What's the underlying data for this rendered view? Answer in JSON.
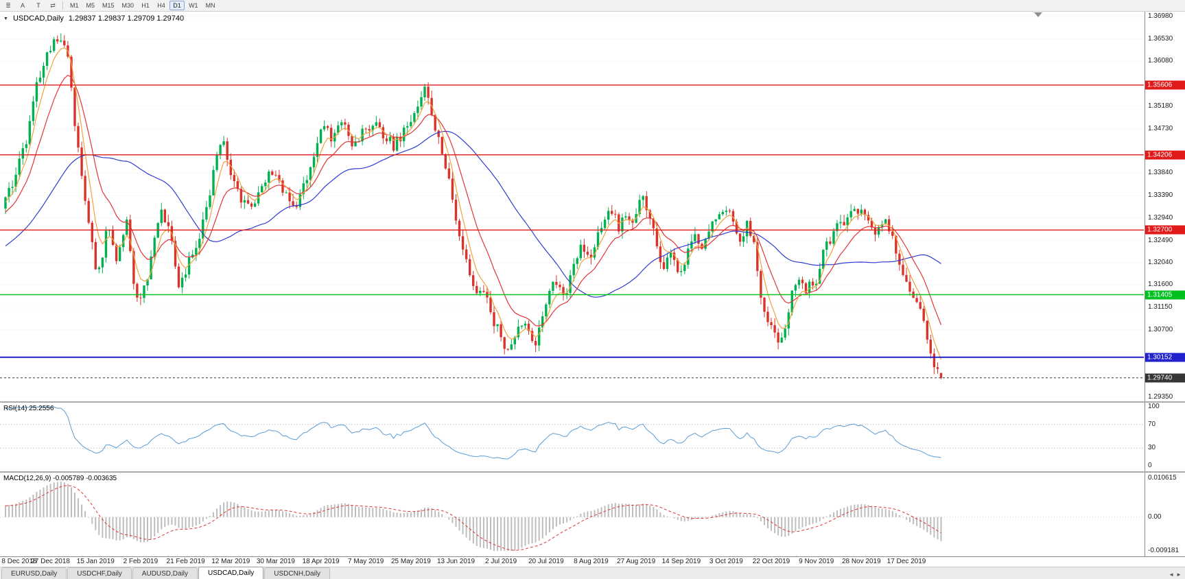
{
  "toolbar": {
    "menu_icon": "≣",
    "a_label": "A",
    "t_label": "T",
    "arrows_icon": "⇄",
    "timeframes": [
      "M1",
      "M5",
      "M15",
      "M30",
      "H1",
      "H4",
      "D1",
      "W1",
      "MN"
    ],
    "active_timeframe": "D1"
  },
  "icons": {
    "caret_down": "▼",
    "tab_scroll_left": "◄",
    "tab_scroll_right": "►"
  },
  "chart": {
    "symbol_period": "USDCAD,Daily",
    "ohlc_text": "1.29837 1.29837 1.29709 1.29740"
  },
  "chart_data": {
    "type": "candlestick",
    "symbol": "USDCAD",
    "timeframe": "Daily",
    "bar_count": 271,
    "last_bar": {
      "open": 1.29837,
      "high": 1.29837,
      "low": 1.29709,
      "close": 1.2974
    },
    "price_range": {
      "max": 1.37075,
      "min": 1.29268
    },
    "price_axis_ticks": [
      "1.36980",
      "1.36530",
      "1.36080",
      "1.35180",
      "1.34730",
      "1.33840",
      "1.33390",
      "1.32940",
      "1.32490",
      "1.32040",
      "1.31600",
      "1.31150",
      "1.30700",
      "1.29350"
    ],
    "levels": [
      {
        "price": 1.35606,
        "label": "1.35606",
        "color": "#e11a1a",
        "width": 1.4,
        "role": "resistance"
      },
      {
        "price": 1.34206,
        "label": "1.34206",
        "color": "#e11a1a",
        "width": 1.4,
        "role": "resistance"
      },
      {
        "price": 1.327,
        "label": "1.32700",
        "color": "#e11a1a",
        "width": 1.4,
        "role": "resistance"
      },
      {
        "price": 1.31405,
        "label": "1.31405",
        "color": "#00c11f",
        "width": 1.6,
        "role": "support"
      },
      {
        "price": 1.30152,
        "label": "1.30152",
        "color": "#2222cc",
        "width": 2,
        "role": "support"
      },
      {
        "price": 1.2974,
        "label": "1.29740",
        "color": "#363636",
        "width": 1,
        "style": "dashed",
        "role": "bid"
      }
    ],
    "colors": {
      "bull": "#00b14f",
      "bear": "#d9342b",
      "grid": "#e3e3ec"
    },
    "moving_averages": [
      {
        "name": "fast",
        "period": 5,
        "color": "#eda33c"
      },
      {
        "name": "medium",
        "period": 13,
        "color": "#e23434"
      },
      {
        "name": "slow",
        "period": 40,
        "color": "#2e3bd2"
      }
    ],
    "date_ticks": [
      {
        "index": 0,
        "label": "8 Dec 2018"
      },
      {
        "index": 13,
        "label": "27 Dec 2018"
      },
      {
        "index": 26,
        "label": "15 Jan 2019"
      },
      {
        "index": 39,
        "label": "2 Feb 2019"
      },
      {
        "index": 52,
        "label": "21 Feb 2019"
      },
      {
        "index": 65,
        "label": "12 Mar 2019"
      },
      {
        "index": 78,
        "label": "30 Mar 2019"
      },
      {
        "index": 91,
        "label": "18 Apr 2019"
      },
      {
        "index": 104,
        "label": "7 May 2019"
      },
      {
        "index": 117,
        "label": "25 May 2019"
      },
      {
        "index": 130,
        "label": "13 Jun 2019"
      },
      {
        "index": 143,
        "label": "2 Jul 2019"
      },
      {
        "index": 156,
        "label": "20 Jul 2019"
      },
      {
        "index": 169,
        "label": "8 Aug 2019"
      },
      {
        "index": 182,
        "label": "27 Aug 2019"
      },
      {
        "index": 195,
        "label": "14 Sep 2019"
      },
      {
        "index": 208,
        "label": "3 Oct 2019"
      },
      {
        "index": 221,
        "label": "22 Oct 2019"
      },
      {
        "index": 234,
        "label": "9 Nov 2019"
      },
      {
        "index": 247,
        "label": "28 Nov 2019"
      },
      {
        "index": 260,
        "label": "17 Dec 2019"
      }
    ],
    "close_waypoints": [
      [
        0,
        1.3325
      ],
      [
        3,
        1.3385
      ],
      [
        6,
        1.345
      ],
      [
        9,
        1.356
      ],
      [
        12,
        1.3618
      ],
      [
        14,
        1.3642
      ],
      [
        16,
        1.3655
      ],
      [
        17,
        1.3648
      ],
      [
        18,
        1.3615
      ],
      [
        19,
        1.356
      ],
      [
        20,
        1.348
      ],
      [
        21,
        1.3445
      ],
      [
        23,
        1.333
      ],
      [
        25,
        1.3245
      ],
      [
        26,
        1.3195
      ],
      [
        28,
        1.3215
      ],
      [
        29,
        1.327
      ],
      [
        31,
        1.325
      ],
      [
        32,
        1.3215
      ],
      [
        34,
        1.327
      ],
      [
        35,
        1.329
      ],
      [
        36,
        1.322
      ],
      [
        37,
        1.316
      ],
      [
        39,
        1.313
      ],
      [
        41,
        1.318
      ],
      [
        43,
        1.3255
      ],
      [
        45,
        1.331
      ],
      [
        47,
        1.328
      ],
      [
        49,
        1.32
      ],
      [
        50,
        1.3165
      ],
      [
        52,
        1.319
      ],
      [
        54,
        1.3225
      ],
      [
        56,
        1.326
      ],
      [
        58,
        1.332
      ],
      [
        60,
        1.338
      ],
      [
        62,
        1.3445
      ],
      [
        63,
        1.345
      ],
      [
        64,
        1.341
      ],
      [
        65,
        1.338
      ],
      [
        67,
        1.3345
      ],
      [
        69,
        1.332
      ],
      [
        71,
        1.331
      ],
      [
        73,
        1.335
      ],
      [
        75,
        1.3375
      ],
      [
        77,
        1.3385
      ],
      [
        78,
        1.338
      ],
      [
        80,
        1.3355
      ],
      [
        82,
        1.332
      ],
      [
        84,
        1.3315
      ],
      [
        86,
        1.3355
      ],
      [
        88,
        1.339
      ],
      [
        90,
        1.3445
      ],
      [
        92,
        1.348
      ],
      [
        94,
        1.3455
      ],
      [
        96,
        1.347
      ],
      [
        98,
        1.3485
      ],
      [
        100,
        1.3445
      ],
      [
        102,
        1.3455
      ],
      [
        104,
        1.347
      ],
      [
        106,
        1.3482
      ],
      [
        108,
        1.347
      ],
      [
        110,
        1.3452
      ],
      [
        112,
        1.344
      ],
      [
        114,
        1.3455
      ],
      [
        116,
        1.3475
      ],
      [
        118,
        1.3495
      ],
      [
        120,
        1.3545
      ],
      [
        121,
        1.356
      ],
      [
        122,
        1.354
      ],
      [
        124,
        1.348
      ],
      [
        126,
        1.3425
      ],
      [
        128,
        1.338
      ],
      [
        130,
        1.3285
      ],
      [
        132,
        1.3225
      ],
      [
        134,
        1.318
      ],
      [
        136,
        1.3135
      ],
      [
        138,
        1.3155
      ],
      [
        140,
        1.3095
      ],
      [
        142,
        1.3075
      ],
      [
        144,
        1.3042
      ],
      [
        145,
        1.3028
      ],
      [
        147,
        1.306
      ],
      [
        149,
        1.3082
      ],
      [
        151,
        1.307
      ],
      [
        153,
        1.3045
      ],
      [
        155,
        1.3095
      ],
      [
        156,
        1.313
      ],
      [
        158,
        1.316
      ],
      [
        160,
        1.3145
      ],
      [
        162,
        1.314
      ],
      [
        164,
        1.3205
      ],
      [
        166,
        1.3235
      ],
      [
        168,
        1.3215
      ],
      [
        169,
        1.3222
      ],
      [
        171,
        1.326
      ],
      [
        173,
        1.3295
      ],
      [
        175,
        1.3312
      ],
      [
        177,
        1.3275
      ],
      [
        179,
        1.3305
      ],
      [
        181,
        1.329
      ],
      [
        183,
        1.332
      ],
      [
        184,
        1.3335
      ],
      [
        186,
        1.329
      ],
      [
        188,
        1.3235
      ],
      [
        190,
        1.3195
      ],
      [
        192,
        1.3215
      ],
      [
        194,
        1.3185
      ],
      [
        195,
        1.318
      ],
      [
        197,
        1.3235
      ],
      [
        199,
        1.3262
      ],
      [
        201,
        1.324
      ],
      [
        203,
        1.327
      ],
      [
        205,
        1.329
      ],
      [
        207,
        1.3305
      ],
      [
        208,
        1.3312
      ],
      [
        210,
        1.329
      ],
      [
        212,
        1.3252
      ],
      [
        214,
        1.3282
      ],
      [
        216,
        1.3235
      ],
      [
        218,
        1.313
      ],
      [
        220,
        1.3095
      ],
      [
        221,
        1.3078
      ],
      [
        223,
        1.3048
      ],
      [
        225,
        1.3082
      ],
      [
        227,
        1.314
      ],
      [
        229,
        1.3172
      ],
      [
        231,
        1.3152
      ],
      [
        233,
        1.3162
      ],
      [
        234,
        1.3172
      ],
      [
        236,
        1.323
      ],
      [
        238,
        1.3252
      ],
      [
        240,
        1.3282
      ],
      [
        242,
        1.3272
      ],
      [
        244,
        1.33
      ],
      [
        246,
        1.3312
      ],
      [
        247,
        1.331
      ],
      [
        249,
        1.3282
      ],
      [
        251,
        1.3255
      ],
      [
        253,
        1.3292
      ],
      [
        255,
        1.3272
      ],
      [
        257,
        1.3232
      ],
      [
        259,
        1.3185
      ],
      [
        260,
        1.3162
      ],
      [
        262,
        1.3132
      ],
      [
        264,
        1.3112
      ],
      [
        266,
        1.3052
      ],
      [
        268,
        1.3002
      ],
      [
        269,
        1.29837
      ],
      [
        270,
        1.2974
      ]
    ]
  },
  "rsi": {
    "label": "RSI(14) 25.2556",
    "period": 14,
    "value": 25.2556,
    "levels_dashed": [
      70,
      30
    ],
    "axis_labels": [
      "100",
      "70",
      "30",
      "0"
    ],
    "color": "#5b9bd5"
  },
  "macd": {
    "label": "MACD(12,26,9) -0.005789 -0.003635",
    "fast": 12,
    "slow": 26,
    "signal": 9,
    "value": -0.005789,
    "signal_value": -0.003635,
    "axis_labels": [
      "0.010615",
      "0.00",
      "-0.009181"
    ],
    "axis_max": 0.010615,
    "axis_min": -0.009181,
    "histogram_color": "#bdbdbd",
    "signal_color": "#e03434"
  },
  "tabs": {
    "items": [
      "EURUSD,Daily",
      "USDCHF,Daily",
      "AUDUSD,Daily",
      "USDCAD,Daily",
      "USDCNH,Daily"
    ],
    "active": "USDCAD,Daily"
  }
}
